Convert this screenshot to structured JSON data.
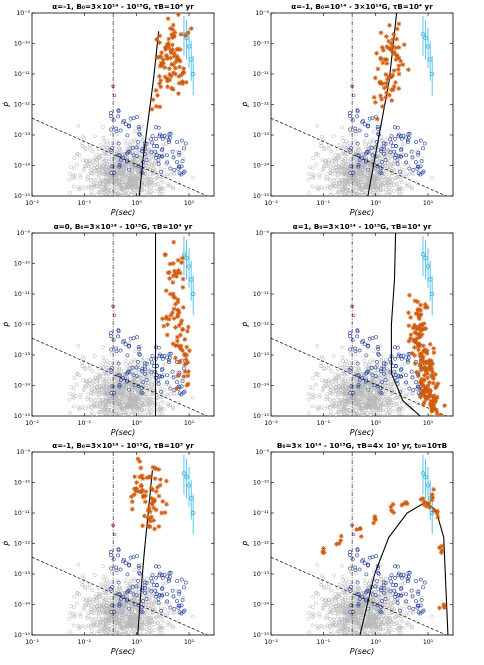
{
  "figure": {
    "panels": [
      {
        "title": "α=-1, B₀=3×10¹⁴ - 10¹⁵G, τB=10⁴ yr"
      },
      {
        "title": "α=-1, B₀=10¹⁴ - 3×10¹⁴G, τB=10⁴ yr"
      },
      {
        "title": "α=0, B₀=3×10¹⁴ - 10¹⁵G, τB=10⁴ yr"
      },
      {
        "title": "α=1, B₀=3×10¹⁴ - 10¹⁵G, τB=10⁴ yr"
      },
      {
        "title": "α=-1, B₀=3×10¹⁴ - 10¹⁵G, τB=10³ yr"
      },
      {
        "title": "B₀=3× 10¹⁴ - 10¹⁵G, τB=4× 10³ yr, t₀=10τB"
      }
    ]
  },
  "chart_data": [
    {
      "type": "scatter",
      "title": "α=-1, B₀=3×10¹⁴ - 10¹⁵G, τB=10⁴ yr",
      "xlabel": "P(sec)",
      "ylabel": "Ṗ",
      "xscale": "log",
      "yscale": "log",
      "xlim": [
        0.01,
        30
      ],
      "ylim": [
        1e-15,
        1e-09
      ],
      "xticks": [
        "10⁻²",
        "10⁻¹",
        "10⁰",
        "10¹"
      ],
      "yticks": [
        "10⁻¹⁵",
        "10⁻¹⁴",
        "10⁻¹³",
        "10⁻¹²",
        "10⁻¹¹",
        "10⁻¹⁰",
        "10⁻⁹"
      ],
      "series": [
        {
          "values": [
            [
              3.0,
              5e-11
            ],
            [
              4.0,
              1e-10
            ],
            [
              5.0,
              2e-11
            ],
            [
              3.5,
              8e-12
            ],
            [
              6.0,
              3e-11
            ],
            [
              4.5,
              6e-11
            ],
            [
              7.0,
              2e-10
            ],
            [
              2.5,
              2e-12
            ],
            [
              5.5,
              1e-11
            ],
            [
              3.2,
              3e-11
            ],
            [
              4.2,
              1.5e-11
            ],
            [
              6.5,
              5e-12
            ],
            [
              5.0,
              4e-10
            ]
          ]
        },
        {
          "values": [
            [
              8.0,
              2e-10
            ],
            [
              10.0,
              8e-11
            ],
            [
              11.0,
              3e-11
            ],
            [
              12.0,
              1e-11
            ],
            [
              9.0,
              1.5e-10
            ]
          ]
        }
      ]
    },
    {
      "type": "scatter",
      "title": "α=-1, B₀=10¹⁴ - 3×10¹⁴G, τB=10⁴ yr",
      "xlabel": "P(sec)",
      "ylabel": "Ṗ",
      "xscale": "log",
      "yscale": "log",
      "xlim": [
        0.01,
        30
      ],
      "ylim": [
        1e-15,
        1e-09
      ],
      "xticks": [
        "10⁻²",
        "10⁻¹",
        "10⁰",
        "10¹"
      ],
      "yticks": [
        "10⁻¹⁵",
        "10⁻¹⁴",
        "10⁻¹³",
        "10⁻¹²",
        "10⁻¹¹",
        "10⁻¹⁰",
        "10⁻⁹"
      ],
      "series": [
        {
          "values": [
            [
              1.5,
              3e-11
            ],
            [
              2.0,
              1e-10
            ],
            [
              1.8,
              8e-12
            ],
            [
              2.5,
              4e-11
            ],
            [
              1.3,
              1.5e-12
            ],
            [
              2.2,
              2e-10
            ],
            [
              1.6,
              5e-12
            ],
            [
              2.8,
              1e-11
            ],
            [
              1.4,
              6e-11
            ],
            [
              2.0,
              3e-12
            ]
          ]
        },
        {
          "values": [
            [
              8.0,
              2e-10
            ],
            [
              10.0,
              8e-11
            ],
            [
              11.0,
              3e-11
            ],
            [
              12.0,
              1e-11
            ],
            [
              9.0,
              1.5e-10
            ]
          ]
        }
      ]
    },
    {
      "type": "scatter",
      "title": "α=0, B₀=3×10¹⁴ - 10¹⁵G, τB=10⁴ yr",
      "xlabel": "P(sec)",
      "ylabel": "Ṗ",
      "xscale": "log",
      "yscale": "log",
      "xlim": [
        0.01,
        30
      ],
      "ylim": [
        1e-15,
        1e-09
      ],
      "xticks": [
        "10⁻²",
        "10⁻¹",
        "10⁰",
        "10¹"
      ],
      "yticks": [
        "10⁻¹⁵",
        "10⁻¹⁴",
        "10⁻¹³",
        "10⁻¹²",
        "10⁻¹¹",
        "10⁻¹⁰",
        "10⁻⁹"
      ],
      "series": [
        {
          "values": [
            [
              4.0,
              5e-11
            ],
            [
              5.0,
              1e-11
            ],
            [
              6.0,
              3e-12
            ],
            [
              5.5,
              8e-13
            ],
            [
              7.0,
              2e-13
            ],
            [
              6.5,
              6e-14
            ],
            [
              8.0,
              2e-14
            ],
            [
              4.5,
              2e-12
            ],
            [
              6.0,
              5e-11
            ],
            [
              5.0,
              1e-10
            ],
            [
              7.5,
              7e-13
            ],
            [
              9.0,
              1e-13
            ]
          ]
        },
        {
          "values": [
            [
              8.0,
              2e-10
            ],
            [
              10.0,
              8e-11
            ],
            [
              11.0,
              3e-11
            ],
            [
              12.0,
              1e-11
            ],
            [
              9.0,
              1.5e-10
            ]
          ]
        }
      ]
    },
    {
      "type": "scatter",
      "title": "α=1, B₀=3×10¹⁴ - 10¹⁵G, τB=10⁴ yr",
      "xlabel": "P(sec)",
      "ylabel": "Ṗ",
      "xscale": "log",
      "yscale": "log",
      "xlim": [
        0.01,
        30
      ],
      "ylim": [
        1e-15,
        1e-09
      ],
      "xticks": [
        "10⁻²",
        "10⁻¹",
        "10⁰",
        "10¹"
      ],
      "yticks": [
        "10⁻¹⁵",
        "10⁻¹⁴",
        "10⁻¹³",
        "10⁻¹²",
        "10⁻¹¹",
        "10⁻⁹"
      ],
      "series": [
        {
          "values": [
            [
              6.0,
              5e-13
            ],
            [
              7.0,
              2e-13
            ],
            [
              8.0,
              8e-14
            ],
            [
              9.0,
              3e-14
            ],
            [
              10.0,
              1e-14
            ],
            [
              11.0,
              5e-15
            ],
            [
              12.0,
              2e-15
            ],
            [
              6.5,
              3e-12
            ],
            [
              9.5,
              6e-14
            ],
            [
              8.5,
              1.5e-14
            ],
            [
              13.0,
              3e-15
            ],
            [
              7.5,
              1e-12
            ]
          ]
        },
        {
          "values": [
            [
              8.0,
              2e-10
            ],
            [
              10.0,
              8e-11
            ],
            [
              11.0,
              3e-11
            ],
            [
              12.0,
              1e-11
            ],
            [
              9.0,
              1.5e-10
            ]
          ]
        }
      ]
    },
    {
      "type": "scatter",
      "title": "α=-1, B₀=3×10¹⁴ - 10¹⁵G, τB=10³ yr",
      "xlabel": "P(sec)",
      "ylabel": "Ṗ",
      "xscale": "log",
      "yscale": "log",
      "xlim": [
        0.01,
        30
      ],
      "ylim": [
        1e-15,
        1e-09
      ],
      "xticks": [
        "10⁻²",
        "10⁻¹",
        "10⁰",
        "10¹"
      ],
      "yticks": [
        "10⁻¹⁵",
        "10⁻¹⁴",
        "10⁻¹³",
        "10⁻¹²",
        "10⁻¹¹",
        "10⁻¹⁰",
        "10⁻⁹"
      ],
      "series": [
        {
          "values": [
            [
              1.0,
              1e-10
            ],
            [
              1.5,
              5e-11
            ],
            [
              2.0,
              2e-11
            ],
            [
              1.2,
              3e-10
            ],
            [
              2.5,
              7e-11
            ],
            [
              3.0,
              1e-11
            ],
            [
              1.8,
              1.5e-10
            ],
            [
              0.9,
              4e-11
            ],
            [
              2.2,
              3e-12
            ],
            [
              1.4,
              8e-12
            ]
          ]
        },
        {
          "values": [
            [
              8.0,
              2e-10
            ],
            [
              10.0,
              8e-11
            ],
            [
              11.0,
              3e-11
            ],
            [
              12.0,
              1e-11
            ],
            [
              9.0,
              1.5e-10
            ]
          ]
        }
      ]
    },
    {
      "type": "scatter",
      "title": "B₀=3× 10¹⁴ - 10¹⁵G, τB=4× 10³ yr, t₀=10τB",
      "xlabel": "P(sec)",
      "ylabel": "Ṗ",
      "xscale": "log",
      "yscale": "log",
      "xlim": [
        0.01,
        30
      ],
      "ylim": [
        1e-15,
        1e-09
      ],
      "xticks": [
        "10⁻²",
        "10⁻¹",
        "10⁰",
        "10¹"
      ],
      "yticks": [
        "10⁻¹⁵",
        "10⁻¹⁴",
        "10⁻¹³",
        "10⁻¹²",
        "10⁻¹¹",
        "10⁻¹⁰",
        "10⁻⁹"
      ],
      "series": [
        {
          "values": [
            [
              0.1,
              5e-13
            ],
            [
              0.2,
              1e-12
            ],
            [
              0.5,
              3e-12
            ],
            [
              1.0,
              6e-12
            ],
            [
              2.0,
              1.2e-11
            ],
            [
              4.0,
              2e-11
            ],
            [
              8.0,
              3e-11
            ],
            [
              12.0,
              4e-11
            ],
            [
              15.0,
              1e-11
            ],
            [
              18.0,
              5e-13
            ],
            [
              20.0,
              1e-14
            ],
            [
              10.0,
              2e-11
            ]
          ]
        },
        {
          "values": [
            [
              8.0,
              2e-10
            ],
            [
              10.0,
              8e-11
            ],
            [
              11.0,
              3e-11
            ],
            [
              12.0,
              1e-11
            ],
            [
              9.0,
              1.5e-10
            ]
          ]
        }
      ]
    }
  ]
}
